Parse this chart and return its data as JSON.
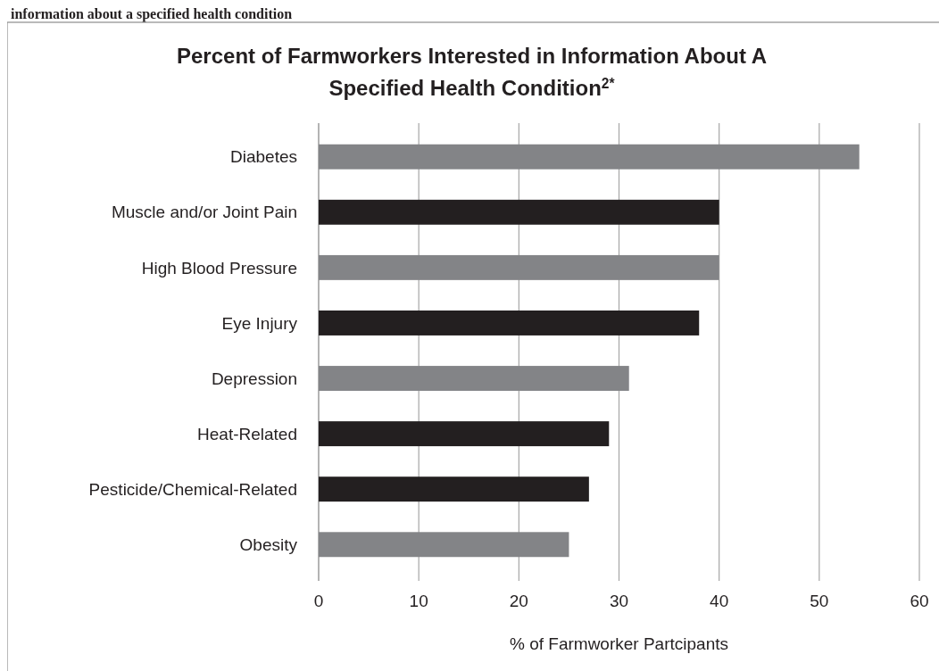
{
  "chart_data": {
    "type": "bar",
    "orientation": "horizontal",
    "title": "Percent of Farmworkers Interested in Information About A Specified Health Condition$^{2*}$",
    "xlabel": "% of Farmworker Partcipants",
    "annotations": [
      "information about a specified health condition"
    ],
    "categories": [
      "Diabetes",
      "Muscle and/or Joint Pain",
      "High Blood Pressure",
      "Eye Injury",
      "Depression",
      "Heat-Related",
      "Pesticide/Chemical-Related",
      "Obesity"
    ],
    "values": [
      54,
      40,
      40,
      38,
      31,
      29,
      27,
      25
    ],
    "colors": [
      "#838487",
      "#231f20",
      "#838487",
      "#231f20",
      "#838487",
      "#231f20",
      "#231f20",
      "#838487"
    ],
    "xlim": [
      0,
      60
    ],
    "xticks": [
      0,
      10,
      20,
      30,
      40,
      50,
      60
    ],
    "grid": "x"
  }
}
